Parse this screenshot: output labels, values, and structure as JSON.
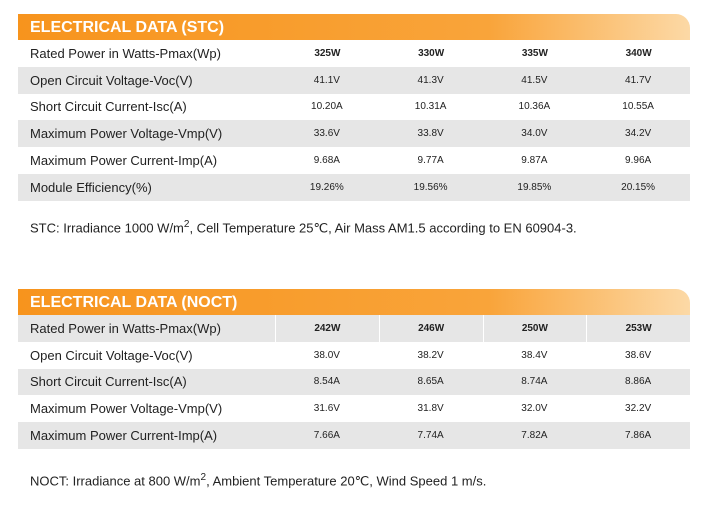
{
  "sections": [
    {
      "title": "ELECTRICAL DATA (STC)",
      "header": {
        "label": "Rated Power in Watts-Pmax(Wp)",
        "cells": [
          "325W",
          "330W",
          "335W",
          "340W"
        ]
      },
      "rows": [
        {
          "label": "Open Circuit Voltage-Voc(V)",
          "cells": [
            "41.1V",
            "41.3V",
            "41.5V",
            "41.7V"
          ]
        },
        {
          "label": "Short Circuit Current-Isc(A)",
          "cells": [
            "10.20A",
            "10.31A",
            "10.36A",
            "10.55A"
          ]
        },
        {
          "label": "Maximum Power Voltage-Vmp(V)",
          "cells": [
            "33.6V",
            "33.8V",
            "34.0V",
            "34.2V"
          ]
        },
        {
          "label": "Maximum Power Current-Imp(A)",
          "cells": [
            "9.68A",
            "9.77A",
            "9.87A",
            "9.96A"
          ]
        },
        {
          "label": "Module Efficiency(%)",
          "cells": [
            "19.26%",
            "19.56%",
            "19.85%",
            "20.15%"
          ]
        }
      ],
      "note": {
        "text": "STC: Irradiance 1000 W/m",
        "sup": "2",
        "rest": ", Cell Temperature 25℃, Air Mass AM1.5 according to EN 60904-3."
      }
    },
    {
      "title": "ELECTRICAL DATA (NOCT)",
      "header": {
        "label": "Rated Power in Watts-Pmax(Wp)",
        "cells": [
          "242W",
          "246W",
          "250W",
          "253W"
        ]
      },
      "rows": [
        {
          "label": "Open Circuit Voltage-Voc(V)",
          "cells": [
            "38.0V",
            "38.2V",
            "38.4V",
            "38.6V"
          ]
        },
        {
          "label": "Short Circuit Current-Isc(A)",
          "cells": [
            "8.54A",
            "8.65A",
            "8.74A",
            "8.86A"
          ]
        },
        {
          "label": "Maximum Power Voltage-Vmp(V)",
          "cells": [
            "31.6V",
            "31.8V",
            "32.0V",
            "32.2V"
          ]
        },
        {
          "label": "Maximum Power Current-Imp(A)",
          "cells": [
            "7.66A",
            "7.74A",
            "7.82A",
            "7.86A"
          ]
        }
      ],
      "note": {
        "text": "NOCT: Irradiance at 800 W/m",
        "sup": "2",
        "rest": ", Ambient Temperature 20℃, Wind Speed 1 m/s."
      }
    }
  ]
}
